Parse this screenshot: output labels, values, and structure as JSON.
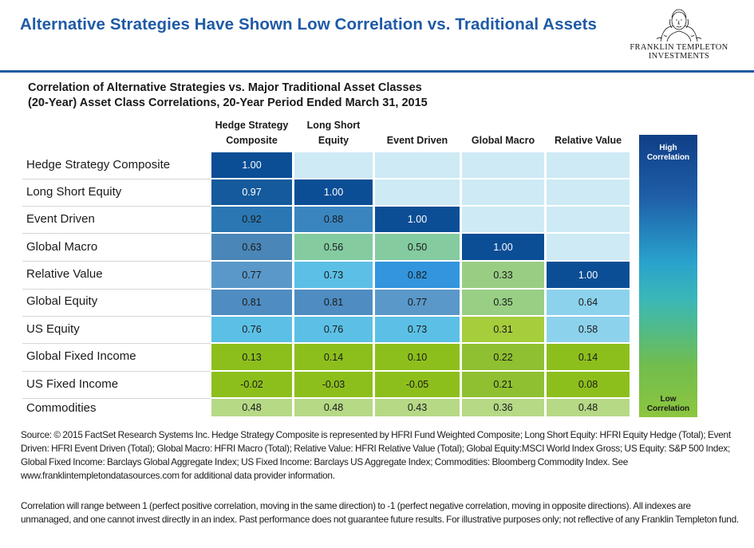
{
  "header": {
    "title": "Alternative Strategies Have Shown Low Correlation vs. Traditional Assets",
    "logo_line1": "FRANKLIN TEMPLETON",
    "logo_line2": "INVESTMENTS",
    "logo_icon": "benjamin-franklin-portrait-icon"
  },
  "chart_data": {
    "type": "table",
    "title": "Correlation of Alternative Strategies vs. Major Traditional Asset Classes",
    "subtitle": "(20-Year) Asset Class Correlations, 20-Year Period Ended March 31, 2015",
    "columns": [
      "Hedge Strategy\nComposite",
      "Long Short\nEquity",
      "Event Driven",
      "Global Macro",
      "Relative Value"
    ],
    "rows": [
      {
        "label": "Hedge Strategy Composite",
        "values": [
          "1.00",
          "",
          "",
          "",
          ""
        ]
      },
      {
        "label": "Long Short Equity",
        "values": [
          "0.97",
          "1.00",
          "",
          "",
          ""
        ]
      },
      {
        "label": "Event Driven",
        "values": [
          "0.92",
          "0.88",
          "1.00",
          "",
          ""
        ]
      },
      {
        "label": "Global Macro",
        "values": [
          "0.63",
          "0.56",
          "0.50",
          "1.00",
          ""
        ]
      },
      {
        "label": "Relative Value",
        "values": [
          "0.77",
          "0.73",
          "0.82",
          "0.33",
          "1.00"
        ]
      },
      {
        "label": "Global Equity",
        "values": [
          "0.81",
          "0.81",
          "0.77",
          "0.35",
          "0.64"
        ]
      },
      {
        "label": "US Equity",
        "values": [
          "0.76",
          "0.76",
          "0.73",
          "0.31",
          "0.58"
        ]
      },
      {
        "label": "Global Fixed Income",
        "values": [
          "0.13",
          "0.14",
          "0.10",
          "0.22",
          "0.14"
        ]
      },
      {
        "label": "US Fixed Income",
        "values": [
          "-0.02",
          "-0.03",
          "-0.05",
          "0.21",
          "0.08"
        ]
      },
      {
        "label": "Commodities",
        "values": [
          "0.48",
          "0.48",
          "0.43",
          "0.36",
          "0.48"
        ]
      }
    ],
    "legend": {
      "high": "High\nCorrelation",
      "low": "Low\nCorrelation"
    },
    "colors": {
      "title": "#1f5aa6",
      "empty_cell": "#cdeaf5",
      "c_100": "#0b4e96",
      "c_097": "#145a9c",
      "c_092": "#2a77b3",
      "c_088": "#3a85bf",
      "c_082": "#3295dd",
      "c_081": "#4f8cc2",
      "c_077": "#5a98c9",
      "c_076": "#5cc0e6",
      "c_073": "#5cc0e6",
      "c_063": "#4a86b7",
      "c_064": "#8dd2ec",
      "c_058": "#8dd2ec",
      "c_056": "#84cba0",
      "c_050": "#84cba0",
      "c_035": "#98cf85",
      "c_033": "#9acd84",
      "c_031": "#a6cd3c",
      "c_022": "#8fc031",
      "c_021": "#8fc031",
      "c_014": "#8dbf1c",
      "c_013": "#8dbf1c",
      "c_010": "#8dbf1c",
      "c_008": "#8dbf1c",
      "c_neg": "#8dbf1c",
      "c_048": "#b6d986",
      "c_043": "#b6d986",
      "c_036": "#b6d986"
    }
  },
  "footnotes": {
    "source": "Source: © 2015 FactSet Research Systems Inc. Hedge Strategy Composite is represented by HFRI Fund Weighted Composite; Long Short Equity: HFRI Equity Hedge (Total); Event Driven: HFRI Event Driven (Total); Global Macro: HFRI Macro (Total); Relative Value: HFRI Relative Value (Total); Global Equity:MSCI World Index Gross; US Equity: S&P 500 Index; Global Fixed Income: Barclays Global Aggregate Index; US Fixed Income: Barclays US Aggregate Index; Commodities: Bloomberg Commodity Index. See www.franklintempletondatasources.com for additional data provider information.",
    "disclaimer": "Correlation will range between 1 (perfect positive correlation, moving in the same direction) to -1 (perfect negative correlation, moving in opposite directions). All indexes are unmanaged, and one cannot invest directly in an index. Past performance does not guarantee future results. For illustrative purposes only; not reflective of any Franklin Templeton fund."
  }
}
